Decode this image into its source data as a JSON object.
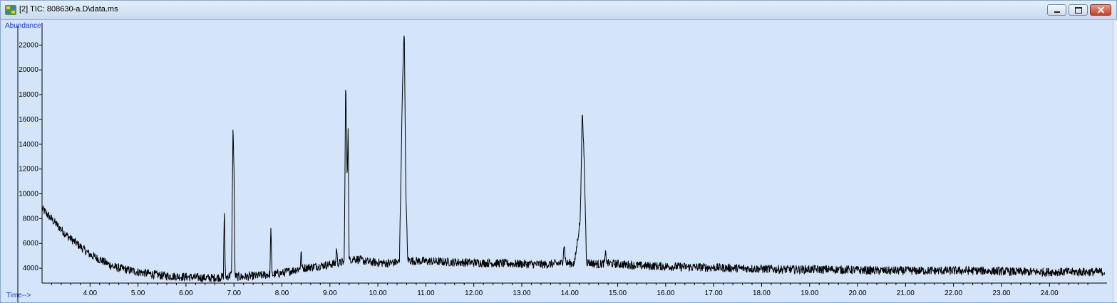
{
  "window": {
    "title": "[2] TIC: 808630-a.D\\data.ms",
    "icon": "chromatogram-app-icon"
  },
  "colors": {
    "plot_background": "#d4e4fa",
    "trace": "#000000",
    "axis_label": "#1a3fd0"
  },
  "chart_data": {
    "type": "line",
    "xlabel": "Time-->",
    "ylabel": "Abundance",
    "xlim": [
      3.0,
      25.2
    ],
    "ylim": [
      2800,
      23800
    ],
    "x_ticks": [
      4.0,
      5.0,
      6.0,
      7.0,
      8.0,
      9.0,
      10.0,
      11.0,
      12.0,
      13.0,
      14.0,
      15.0,
      16.0,
      17.0,
      18.0,
      19.0,
      20.0,
      21.0,
      22.0,
      23.0,
      24.0
    ],
    "x_tick_labels": [
      "4.00",
      "5.00",
      "6.00",
      "7.00",
      "8.00",
      "9.00",
      "10.00",
      "11.00",
      "12.00",
      "13.00",
      "14.00",
      "15.00",
      "16.00",
      "17.00",
      "18.00",
      "19.00",
      "20.00",
      "21.00",
      "22.00",
      "23.00",
      "24.00"
    ],
    "y_ticks": [
      4000,
      6000,
      8000,
      10000,
      12000,
      14000,
      16000,
      18000,
      20000,
      22000
    ],
    "y_tick_labels": [
      "4000",
      "6000",
      "8000",
      "10000",
      "12000",
      "14000",
      "16000",
      "18000",
      "20000",
      "22000"
    ],
    "grid": false,
    "series": [
      {
        "x": [
          3.0,
          3.5,
          4.0,
          4.5,
          5.0,
          5.5,
          6.0,
          6.5,
          6.78,
          6.8,
          6.82,
          6.85,
          6.95,
          6.98,
          7.0,
          7.02,
          7.05,
          7.2,
          7.5,
          7.75,
          7.77,
          7.79,
          7.82,
          8.0,
          8.3,
          8.38,
          8.4,
          8.42,
          8.6,
          9.0,
          9.12,
          9.14,
          9.16,
          9.3,
          9.33,
          9.36,
          9.38,
          9.4,
          9.43,
          9.5,
          9.8,
          10.2,
          10.45,
          10.52,
          10.55,
          10.58,
          10.62,
          10.7,
          11.5,
          12.5,
          13.5,
          13.85,
          13.88,
          13.92,
          14.1,
          14.22,
          14.26,
          14.3,
          14.35,
          14.6,
          14.72,
          14.75,
          14.78,
          15.5,
          16.5,
          17.5,
          18.5,
          19.5,
          20.5,
          21.5,
          22.5,
          23.5,
          24.5,
          25.15
        ],
        "y": [
          8800,
          6700,
          5100,
          4100,
          3700,
          3400,
          3300,
          3200,
          3300,
          9200,
          3300,
          3300,
          3500,
          15200,
          12600,
          3500,
          3300,
          3300,
          3400,
          3500,
          7600,
          3500,
          3500,
          3600,
          3900,
          4000,
          5400,
          4000,
          4100,
          4300,
          4400,
          5800,
          4400,
          4500,
          19400,
          11000,
          15800,
          4600,
          4700,
          4800,
          4500,
          4400,
          4500,
          20000,
          23600,
          11000,
          4700,
          4600,
          4500,
          4400,
          4300,
          4400,
          6000,
          4400,
          4400,
          8000,
          16600,
          13000,
          4500,
          4300,
          4400,
          5200,
          4400,
          4200,
          4100,
          4000,
          3900,
          3900,
          3800,
          3800,
          3800,
          3700,
          3700,
          3700
        ]
      }
    ]
  }
}
